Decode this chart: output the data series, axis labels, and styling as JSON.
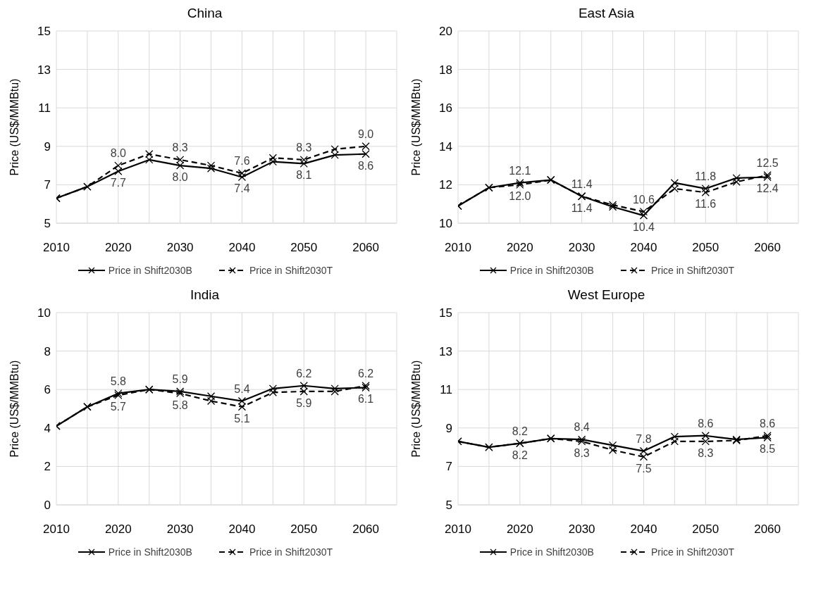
{
  "chart_data": [
    {
      "type": "line",
      "title": "China",
      "ylabel": "Price (US$/MMBtu)",
      "x": [
        2010,
        2015,
        2020,
        2025,
        2030,
        2035,
        2040,
        2045,
        2050,
        2055,
        2060
      ],
      "xlim": [
        2010,
        2065
      ],
      "xticks": [
        2010,
        {
          "value": 2015,
          "label": null
        },
        2020,
        {
          "value": 2025,
          "label": null
        },
        2030,
        {
          "value": 2035,
          "label": null
        },
        2040,
        {
          "value": 2045,
          "label": null
        },
        2050,
        {
          "value": 2055,
          "label": null
        },
        2060,
        {
          "value": 2065,
          "label": null
        }
      ],
      "ylim": [
        5,
        15
      ],
      "yticks": [
        5,
        7,
        9,
        11,
        13,
        15
      ],
      "grid": true,
      "legend": "bottom",
      "marker": "cross",
      "series": [
        {
          "name": "Price in Shift2030B",
          "color": "#000000",
          "line_style": "solid",
          "values": [
            6.3,
            6.9,
            7.7,
            8.3,
            8.0,
            7.85,
            7.4,
            8.2,
            8.1,
            8.55,
            8.6
          ],
          "value_labels": [
            null,
            null,
            "7.7",
            null,
            "8.0",
            null,
            "7.4",
            null,
            "8.1",
            null,
            "8.6"
          ]
        },
        {
          "name": "Price in Shift2030T",
          "color": "#000000",
          "line_style": "dashed",
          "values": [
            6.3,
            6.9,
            8.0,
            8.6,
            8.3,
            8.0,
            7.6,
            8.4,
            8.3,
            8.85,
            9.0
          ],
          "value_labels": [
            null,
            null,
            "8.0",
            null,
            "8.3",
            null,
            "7.6",
            null,
            "8.3",
            null,
            "9.0"
          ]
        }
      ]
    },
    {
      "type": "line",
      "title": "East Asia",
      "ylabel": "Price (US$/MMBtu)",
      "x": [
        2010,
        2015,
        2020,
        2025,
        2030,
        2035,
        2040,
        2045,
        2050,
        2055,
        2060
      ],
      "xlim": [
        2010,
        2065
      ],
      "xticks": [
        2010,
        {
          "value": 2015,
          "label": null
        },
        2020,
        {
          "value": 2025,
          "label": null
        },
        2030,
        {
          "value": 2035,
          "label": null
        },
        2040,
        {
          "value": 2045,
          "label": null
        },
        2050,
        {
          "value": 2055,
          "label": null
        },
        2060,
        {
          "value": 2065,
          "label": null
        }
      ],
      "ylim": [
        10,
        20
      ],
      "yticks": [
        10,
        12,
        14,
        16,
        18,
        20
      ],
      "grid": true,
      "legend": "bottom",
      "marker": "cross",
      "series": [
        {
          "name": "Price in Shift2030B",
          "color": "#000000",
          "line_style": "solid",
          "values": [
            10.9,
            11.85,
            12.1,
            12.25,
            11.4,
            10.85,
            10.4,
            12.1,
            11.8,
            12.35,
            12.4
          ],
          "value_labels": [
            null,
            null,
            "12.1",
            null,
            "11.4",
            null,
            "10.4",
            null,
            "11.8",
            null,
            "12.4"
          ]
        },
        {
          "name": "Price in Shift2030T",
          "color": "#000000",
          "line_style": "dashed",
          "values": [
            10.9,
            11.85,
            12.0,
            12.25,
            11.4,
            10.95,
            10.6,
            11.8,
            11.6,
            12.15,
            12.5
          ],
          "value_labels": [
            null,
            null,
            "12.0",
            null,
            "11.4",
            null,
            "10.6",
            null,
            "11.6",
            null,
            "12.5"
          ]
        }
      ]
    },
    {
      "type": "line",
      "title": "India",
      "ylabel": "Price (US$/MMBtu)",
      "x": [
        2010,
        2015,
        2020,
        2025,
        2030,
        2035,
        2040,
        2045,
        2050,
        2055,
        2060
      ],
      "xlim": [
        2010,
        2065
      ],
      "xticks": [
        2010,
        {
          "value": 2015,
          "label": null
        },
        2020,
        {
          "value": 2025,
          "label": null
        },
        2030,
        {
          "value": 2035,
          "label": null
        },
        2040,
        {
          "value": 2045,
          "label": null
        },
        2050,
        {
          "value": 2055,
          "label": null
        },
        2060,
        {
          "value": 2065,
          "label": null
        }
      ],
      "ylim": [
        0,
        10
      ],
      "yticks": [
        0,
        2,
        4,
        6,
        8,
        10
      ],
      "grid": true,
      "legend": "bottom",
      "marker": "cross",
      "series": [
        {
          "name": "Price in Shift2030B",
          "color": "#000000",
          "line_style": "solid",
          "values": [
            4.1,
            5.1,
            5.8,
            6.0,
            5.9,
            5.65,
            5.4,
            6.05,
            6.2,
            6.05,
            6.1
          ],
          "value_labels": [
            null,
            null,
            "5.8",
            null,
            "5.9",
            null,
            "5.4",
            null,
            "6.2",
            null,
            "6.1"
          ]
        },
        {
          "name": "Price in Shift2030T",
          "color": "#000000",
          "line_style": "dashed",
          "values": [
            4.1,
            5.1,
            5.7,
            6.0,
            5.8,
            5.4,
            5.1,
            5.85,
            5.9,
            5.9,
            6.2
          ],
          "value_labels": [
            null,
            null,
            "5.7",
            null,
            "5.8",
            null,
            "5.1",
            null,
            "5.9",
            null,
            "6.2"
          ]
        }
      ]
    },
    {
      "type": "line",
      "title": "West Europe",
      "ylabel": "Price (US$/MMBtu)",
      "x": [
        2010,
        2015,
        2020,
        2025,
        2030,
        2035,
        2040,
        2045,
        2050,
        2055,
        2060
      ],
      "xlim": [
        2010,
        2065
      ],
      "xticks": [
        2010,
        {
          "value": 2015,
          "label": null
        },
        2020,
        {
          "value": 2025,
          "label": null
        },
        2030,
        {
          "value": 2035,
          "label": null
        },
        2040,
        {
          "value": 2045,
          "label": null
        },
        2050,
        {
          "value": 2055,
          "label": null
        },
        2060,
        {
          "value": 2065,
          "label": null
        }
      ],
      "ylim": [
        5,
        15
      ],
      "yticks": [
        5,
        7,
        9,
        11,
        13,
        15
      ],
      "grid": true,
      "legend": "bottom",
      "marker": "cross",
      "series": [
        {
          "name": "Price in Shift2030B",
          "color": "#000000",
          "line_style": "solid",
          "values": [
            8.3,
            8.0,
            8.2,
            8.45,
            8.4,
            8.1,
            7.8,
            8.55,
            8.6,
            8.4,
            8.5
          ],
          "value_labels": [
            null,
            null,
            "8.2",
            null,
            "8.4",
            null,
            "7.8",
            null,
            "8.6",
            null,
            "8.5"
          ]
        },
        {
          "name": "Price in Shift2030T",
          "color": "#000000",
          "line_style": "dashed",
          "values": [
            8.3,
            8.0,
            8.2,
            8.45,
            8.3,
            7.85,
            7.5,
            8.3,
            8.3,
            8.35,
            8.6
          ],
          "value_labels": [
            null,
            null,
            "8.2",
            null,
            "8.3",
            null,
            "7.5",
            null,
            "8.3",
            null,
            "8.6"
          ]
        }
      ]
    }
  ]
}
